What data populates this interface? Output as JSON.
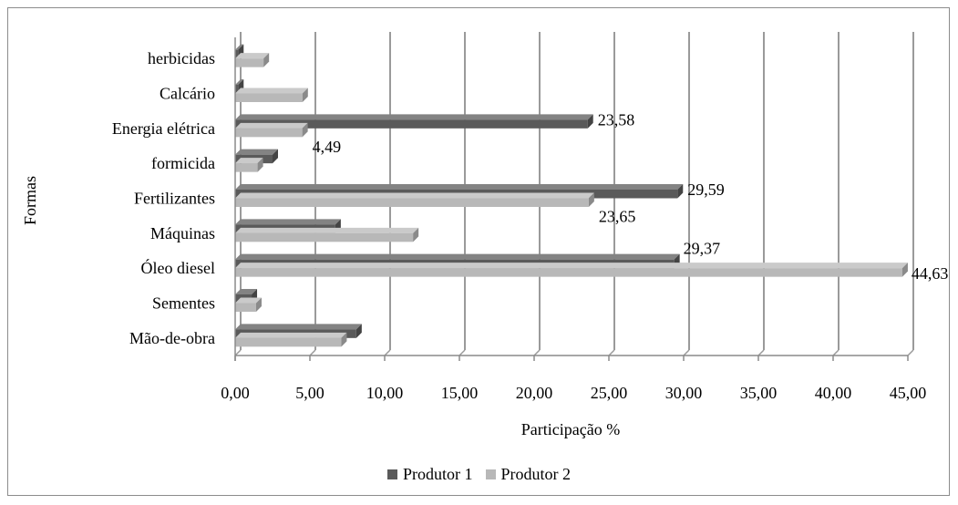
{
  "chart_data": {
    "type": "bar",
    "orientation": "horizontal",
    "style": "3d",
    "categories": [
      "Mão-de-obra",
      "Sementes",
      "Óleo diesel",
      "Máquinas",
      "Fertilizantes",
      "formicida",
      "Energia elétrica",
      "Calcário",
      "herbicidas"
    ],
    "series": [
      {
        "name": "Produtor 1",
        "color": "#5a5a5a",
        "values": [
          8.1,
          1.1,
          29.37,
          6.7,
          29.59,
          2.5,
          23.58,
          0.2,
          0.2
        ]
      },
      {
        "name": "Produtor 2",
        "color": "#b8b8b8",
        "values": [
          7.1,
          1.4,
          44.63,
          11.9,
          23.65,
          1.5,
          4.49,
          4.5,
          1.9
        ]
      }
    ],
    "data_labels": [
      {
        "series": 0,
        "category": "Energia elétrica",
        "text": "23,58"
      },
      {
        "series": 1,
        "category": "Energia elétrica",
        "text": "4,49"
      },
      {
        "series": 0,
        "category": "Fertilizantes",
        "text": "29,59"
      },
      {
        "series": 1,
        "category": "Fertilizantes",
        "text": "23,65"
      },
      {
        "series": 0,
        "category": "Óleo diesel",
        "text": "29,37"
      },
      {
        "series": 1,
        "category": "Óleo diesel",
        "text": "44,63"
      }
    ],
    "xlim": [
      0,
      45
    ],
    "xticks": [
      0,
      5,
      10,
      15,
      20,
      25,
      30,
      35,
      40,
      45
    ],
    "xtick_labels": [
      "0,00",
      "5,00",
      "10,00",
      "15,00",
      "20,00",
      "25,00",
      "30,00",
      "35,00",
      "40,00",
      "45,00"
    ],
    "xlabel": "Participação %",
    "ylabel": "Formas",
    "grid": "vertical",
    "legend_position": "bottom"
  }
}
